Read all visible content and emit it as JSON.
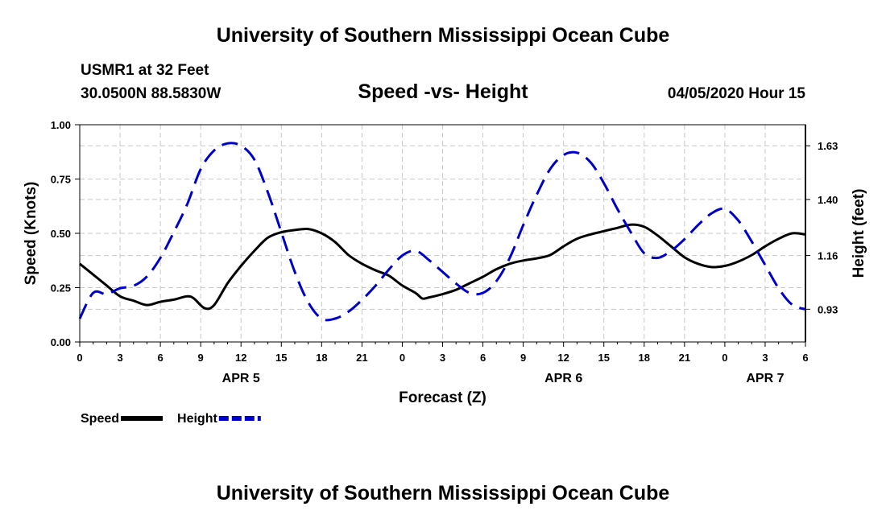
{
  "header": {
    "title": "University of Southern Mississippi Ocean Cube",
    "station": "USMR1 at 32 Feet",
    "coords": "30.0500N 88.5830W",
    "subtitle": "Speed -vs- Height",
    "datetime": "04/05/2020 Hour 15"
  },
  "footer": {
    "title": "University of Southern Mississippi Ocean Cube"
  },
  "chart_data": {
    "type": "line",
    "xlabel": "Forecast (Z)",
    "ylabel": "Speed (Knots)",
    "y2label": "Height (feet)",
    "x_range": [
      0,
      54
    ],
    "ylim": [
      0,
      1
    ],
    "y2lim": [
      0.79,
      1.72
    ],
    "grid": true,
    "x_ticks": [
      0,
      3,
      6,
      9,
      12,
      15,
      18,
      21,
      24,
      27,
      30,
      33,
      36,
      39,
      42,
      45,
      48,
      51,
      54
    ],
    "x_tick_labels": [
      "0",
      "3",
      "6",
      "9",
      "12",
      "15",
      "18",
      "21",
      "0",
      "3",
      "6",
      "9",
      "12",
      "15",
      "18",
      "21",
      "0",
      "3",
      "6"
    ],
    "date_labels": [
      {
        "x": 12,
        "label": "APR 5"
      },
      {
        "x": 36,
        "label": "APR 6"
      },
      {
        "x": 51,
        "label": "APR 7"
      }
    ],
    "y_ticks": [
      0,
      0.25,
      0.5,
      0.75,
      1.0
    ],
    "y_tick_labels": [
      "0.00",
      "0.25",
      "0.50",
      "0.75",
      "1.00"
    ],
    "y2_ticks": [
      0.93,
      1.16,
      1.4,
      1.63
    ],
    "y2_tick_labels": [
      "0.93",
      "1.16",
      "1.40",
      "1.63"
    ],
    "legend_position": "bottom-left",
    "series": [
      {
        "name": "Speed",
        "axis": "left",
        "color": "#000000",
        "dash": "solid",
        "points": [
          [
            0,
            0.36
          ],
          [
            1,
            0.31
          ],
          [
            2,
            0.26
          ],
          [
            3,
            0.21
          ],
          [
            4,
            0.19
          ],
          [
            5,
            0.17
          ],
          [
            6,
            0.185
          ],
          [
            7,
            0.195
          ],
          [
            8,
            0.21
          ],
          [
            8.5,
            0.2
          ],
          [
            9.3,
            0.155
          ],
          [
            10,
            0.17
          ],
          [
            11,
            0.27
          ],
          [
            12,
            0.35
          ],
          [
            13,
            0.42
          ],
          [
            14,
            0.48
          ],
          [
            15,
            0.505
          ],
          [
            16,
            0.515
          ],
          [
            17,
            0.52
          ],
          [
            18,
            0.5
          ],
          [
            19,
            0.46
          ],
          [
            20,
            0.4
          ],
          [
            21,
            0.36
          ],
          [
            22,
            0.33
          ],
          [
            23,
            0.305
          ],
          [
            24,
            0.26
          ],
          [
            25,
            0.225
          ],
          [
            25.5,
            0.2
          ],
          [
            26,
            0.205
          ],
          [
            27,
            0.22
          ],
          [
            28,
            0.24
          ],
          [
            29,
            0.27
          ],
          [
            30,
            0.3
          ],
          [
            31,
            0.335
          ],
          [
            32,
            0.36
          ],
          [
            33,
            0.375
          ],
          [
            34,
            0.385
          ],
          [
            35,
            0.4
          ],
          [
            36,
            0.44
          ],
          [
            37,
            0.475
          ],
          [
            38,
            0.495
          ],
          [
            39,
            0.51
          ],
          [
            40,
            0.525
          ],
          [
            41,
            0.54
          ],
          [
            42,
            0.53
          ],
          [
            43,
            0.49
          ],
          [
            44,
            0.44
          ],
          [
            45,
            0.39
          ],
          [
            46,
            0.36
          ],
          [
            47,
            0.345
          ],
          [
            48,
            0.35
          ],
          [
            49,
            0.37
          ],
          [
            50,
            0.4
          ],
          [
            51,
            0.44
          ],
          [
            52,
            0.475
          ],
          [
            53,
            0.5
          ],
          [
            54,
            0.495
          ]
        ]
      },
      {
        "name": "Height",
        "axis": "right",
        "color": "#0000cc",
        "dash": "dashed",
        "points": [
          [
            0,
            0.89
          ],
          [
            1,
            1.0
          ],
          [
            2,
            0.995
          ],
          [
            3,
            1.02
          ],
          [
            4,
            1.03
          ],
          [
            5,
            1.07
          ],
          [
            6,
            1.15
          ],
          [
            7,
            1.26
          ],
          [
            8,
            1.38
          ],
          [
            9,
            1.53
          ],
          [
            10,
            1.61
          ],
          [
            11,
            1.64
          ],
          [
            12,
            1.63
          ],
          [
            13,
            1.57
          ],
          [
            14,
            1.43
          ],
          [
            15,
            1.26
          ],
          [
            16,
            1.09
          ],
          [
            17,
            0.96
          ],
          [
            18,
            0.89
          ],
          [
            19,
            0.89
          ],
          [
            20,
            0.92
          ],
          [
            21,
            0.97
          ],
          [
            22,
            1.03
          ],
          [
            23,
            1.1
          ],
          [
            24,
            1.16
          ],
          [
            25,
            1.18
          ],
          [
            26,
            1.14
          ],
          [
            27,
            1.09
          ],
          [
            28,
            1.04
          ],
          [
            29,
            1.0
          ],
          [
            30,
            1.0
          ],
          [
            31,
            1.05
          ],
          [
            32,
            1.15
          ],
          [
            33,
            1.29
          ],
          [
            34,
            1.42
          ],
          [
            35,
            1.53
          ],
          [
            36,
            1.59
          ],
          [
            37,
            1.6
          ],
          [
            38,
            1.56
          ],
          [
            39,
            1.47
          ],
          [
            40,
            1.36
          ],
          [
            41,
            1.26
          ],
          [
            42,
            1.17
          ],
          [
            43,
            1.15
          ],
          [
            44,
            1.18
          ],
          [
            45,
            1.23
          ],
          [
            46,
            1.29
          ],
          [
            47,
            1.34
          ],
          [
            48,
            1.36
          ],
          [
            49,
            1.31
          ],
          [
            50,
            1.22
          ],
          [
            51,
            1.12
          ],
          [
            52,
            1.02
          ],
          [
            53,
            0.95
          ],
          [
            54,
            0.93
          ]
        ]
      }
    ]
  }
}
